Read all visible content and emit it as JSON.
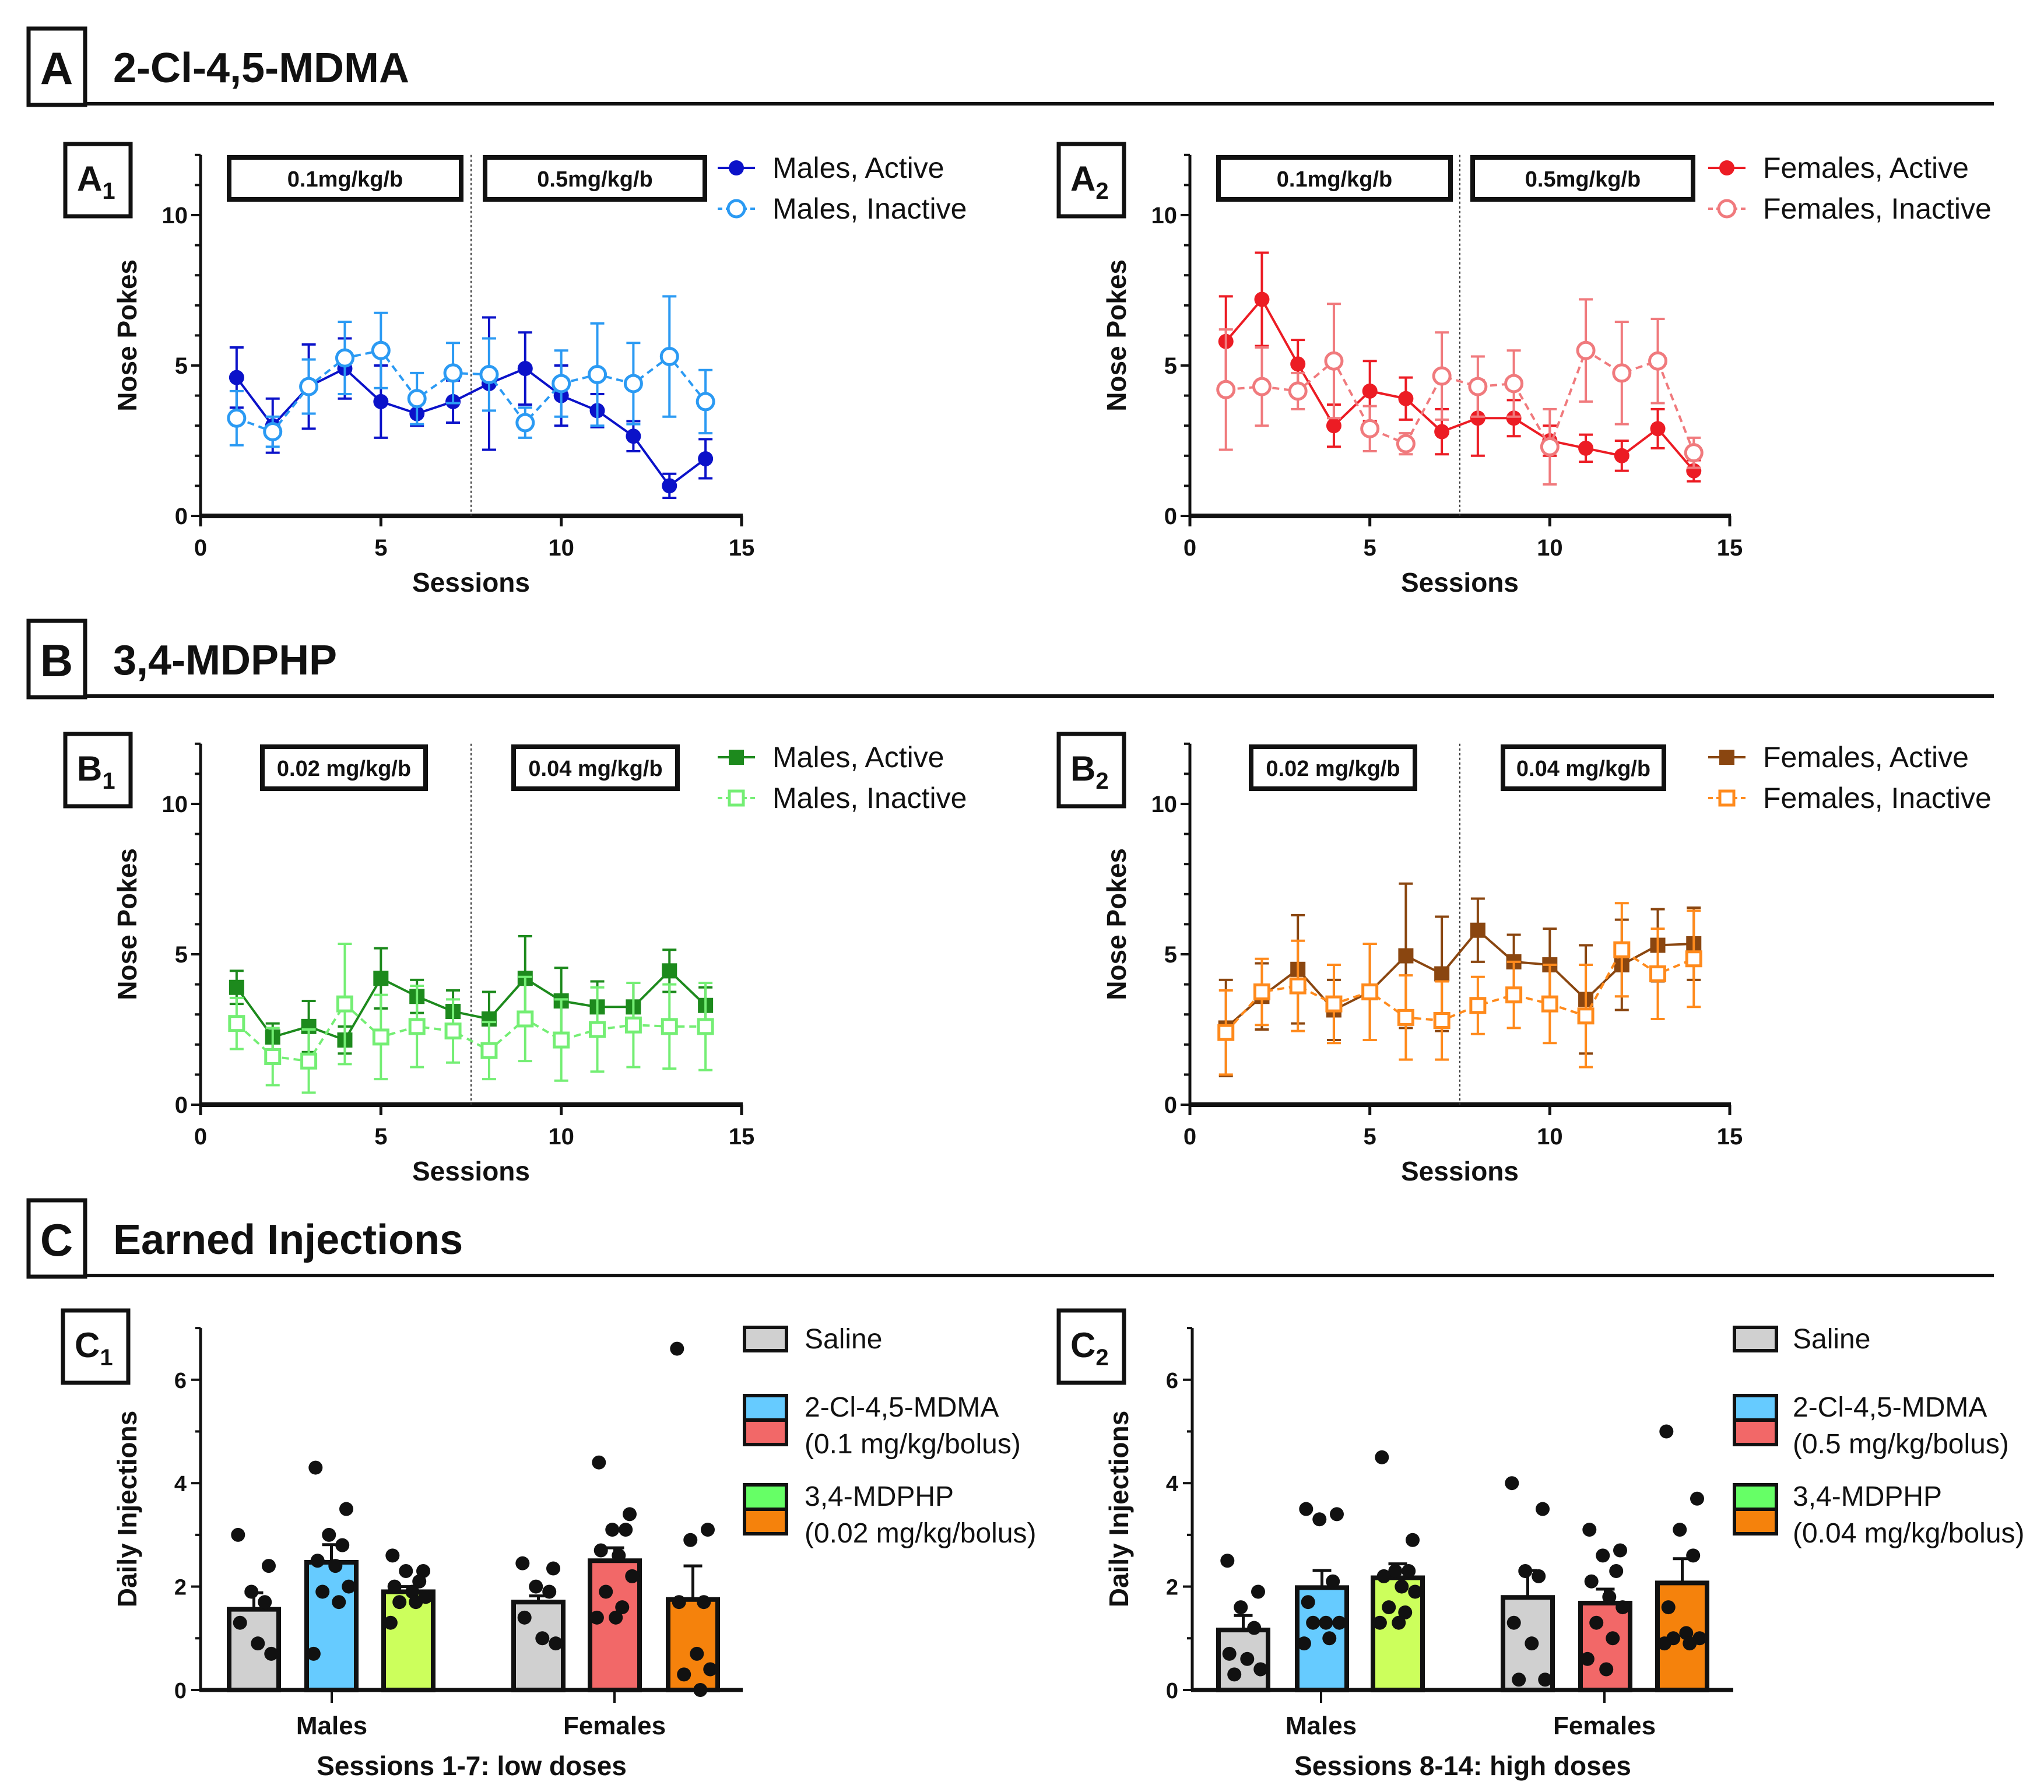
{
  "sections": [
    {
      "letter": "A",
      "title": "2-Cl-4,5-MDMA"
    },
    {
      "letter": "B",
      "title": "3,4-MDPHP"
    },
    {
      "letter": "C",
      "title": "Earned Injections"
    }
  ],
  "chart_data": [
    {
      "id": "A1",
      "type": "line",
      "panel_letter": "A",
      "panel_sub": "1",
      "xlabel": "Sessions",
      "ylabel": "Nose Pokes",
      "xlim": [
        0,
        15
      ],
      "ylim": [
        0,
        12
      ],
      "xticks": [
        "0",
        "5",
        "10",
        "15"
      ],
      "yticks": [
        "0",
        "5",
        "10"
      ],
      "dose_labels": [
        "0.1mg/kg/b",
        "0.5mg/kg/b"
      ],
      "divider_x": 7.5,
      "x": [
        1,
        2,
        3,
        4,
        5,
        6,
        7,
        8,
        9,
        10,
        11,
        12,
        13,
        14
      ],
      "series": [
        {
          "name": "Males, Active",
          "color": "#0b12c9",
          "marker": "circle",
          "filled": true,
          "dashed": false,
          "values": [
            4.6,
            3.0,
            4.3,
            4.9,
            3.8,
            3.4,
            3.8,
            4.4,
            4.9,
            4.0,
            3.5,
            2.65,
            1.0,
            1.9
          ],
          "errors": [
            1.0,
            0.9,
            1.4,
            1.0,
            1.2,
            0.4,
            0.7,
            2.2,
            1.2,
            1.0,
            0.55,
            0.5,
            0.4,
            0.65
          ]
        },
        {
          "name": "Males, Inactive",
          "color": "#2b9af3",
          "marker": "circle",
          "filled": false,
          "dashed": true,
          "values": [
            3.25,
            2.8,
            4.3,
            5.25,
            5.5,
            3.9,
            4.75,
            4.7,
            3.1,
            4.4,
            4.7,
            4.4,
            5.3,
            3.8
          ],
          "errors": [
            0.9,
            0.5,
            0.9,
            1.2,
            1.25,
            0.85,
            1.0,
            1.2,
            0.5,
            1.1,
            1.7,
            1.35,
            2.0,
            1.05
          ]
        }
      ]
    },
    {
      "id": "A2",
      "type": "line",
      "panel_letter": "A",
      "panel_sub": "2",
      "xlabel": "Sessions",
      "ylabel": "Nose Pokes",
      "xlim": [
        0,
        15
      ],
      "ylim": [
        0,
        12
      ],
      "xticks": [
        "0",
        "5",
        "10",
        "15"
      ],
      "yticks": [
        "0",
        "5",
        "10"
      ],
      "dose_labels": [
        "0.1mg/kg/b",
        "0.5mg/kg/b"
      ],
      "divider_x": 7.5,
      "x": [
        1,
        2,
        3,
        4,
        5,
        6,
        7,
        8,
        9,
        10,
        11,
        12,
        13,
        14
      ],
      "series": [
        {
          "name": "Females, Active",
          "color": "#ec1c24",
          "marker": "circle",
          "filled": true,
          "dashed": false,
          "values": [
            5.8,
            7.2,
            5.05,
            3.0,
            4.15,
            3.9,
            2.8,
            3.25,
            3.25,
            2.5,
            2.25,
            2.0,
            2.9,
            1.5
          ],
          "errors": [
            1.5,
            1.55,
            0.8,
            0.7,
            1.0,
            0.7,
            0.75,
            1.25,
            0.6,
            0.5,
            0.45,
            0.5,
            0.65,
            0.35
          ]
        },
        {
          "name": "Females, Inactive",
          "color": "#f07a7d",
          "marker": "circle",
          "filled": false,
          "dashed": true,
          "values": [
            4.2,
            4.3,
            4.15,
            5.15,
            2.9,
            2.4,
            4.65,
            4.3,
            4.4,
            2.3,
            5.5,
            4.75,
            5.15,
            2.1
          ],
          "errors": [
            2.0,
            1.3,
            0.6,
            1.9,
            0.75,
            0.35,
            1.45,
            1.0,
            1.1,
            1.25,
            1.7,
            1.7,
            1.4,
            0.5
          ]
        }
      ]
    },
    {
      "id": "B1",
      "type": "line",
      "panel_letter": "B",
      "panel_sub": "1",
      "xlabel": "Sessions",
      "ylabel": "Nose Pokes",
      "xlim": [
        0,
        15
      ],
      "ylim": [
        0,
        12
      ],
      "xticks": [
        "0",
        "5",
        "10",
        "15"
      ],
      "yticks": [
        "0",
        "5",
        "10"
      ],
      "dose_labels": [
        "0.02 mg/kg/b",
        "0.04 mg/kg/b"
      ],
      "divider_x": 7.5,
      "x": [
        1,
        2,
        3,
        4,
        5,
        6,
        7,
        8,
        9,
        10,
        11,
        12,
        13,
        14
      ],
      "series": [
        {
          "name": "Males, Active",
          "color": "#1d8a1d",
          "marker": "square",
          "filled": true,
          "dashed": false,
          "values": [
            3.9,
            2.25,
            2.6,
            2.15,
            4.2,
            3.6,
            3.1,
            2.85,
            4.2,
            3.45,
            3.25,
            3.25,
            4.45,
            3.3
          ],
          "errors": [
            0.55,
            0.45,
            0.85,
            0.45,
            1.0,
            0.55,
            0.7,
            0.9,
            1.4,
            1.1,
            0.85,
            0.8,
            0.7,
            0.6
          ]
        },
        {
          "name": "Males, Inactive",
          "color": "#74ee74",
          "marker": "square",
          "filled": false,
          "dashed": true,
          "values": [
            2.7,
            1.6,
            1.45,
            3.35,
            2.25,
            2.6,
            2.45,
            1.8,
            2.85,
            2.15,
            2.5,
            2.65,
            2.6,
            2.6
          ],
          "errors": [
            0.85,
            0.95,
            1.05,
            2.0,
            1.4,
            1.35,
            1.05,
            0.95,
            1.4,
            1.35,
            1.4,
            1.4,
            1.4,
            1.45
          ]
        }
      ]
    },
    {
      "id": "B2",
      "type": "line",
      "panel_letter": "B",
      "panel_sub": "2",
      "xlabel": "Sessions",
      "ylabel": "Nose Pokes",
      "xlim": [
        0,
        15
      ],
      "ylim": [
        0,
        12
      ],
      "xticks": [
        "0",
        "5",
        "10",
        "15"
      ],
      "yticks": [
        "0",
        "5",
        "10"
      ],
      "dose_labels": [
        "0.02 mg/kg/b",
        "0.04 mg/kg/b"
      ],
      "divider_x": 7.5,
      "x": [
        1,
        2,
        3,
        4,
        5,
        6,
        7,
        8,
        9,
        10,
        11,
        12,
        13,
        14
      ],
      "series": [
        {
          "name": "Females, Active",
          "color": "#8a4610",
          "marker": "square",
          "filled": true,
          "dashed": false,
          "values": [
            2.55,
            3.6,
            4.5,
            3.15,
            3.75,
            4.95,
            4.35,
            5.8,
            4.75,
            4.65,
            3.5,
            4.65,
            5.3,
            5.35
          ],
          "errors": [
            1.6,
            1.1,
            1.8,
            1.0,
            1.6,
            2.4,
            1.9,
            1.05,
            0.9,
            1.2,
            1.8,
            1.5,
            1.2,
            1.2
          ]
        },
        {
          "name": "Females, Inactive",
          "color": "#ff8a1c",
          "marker": "square",
          "filled": false,
          "dashed": true,
          "values": [
            2.4,
            3.75,
            3.95,
            3.35,
            3.75,
            2.9,
            2.8,
            3.3,
            3.65,
            3.35,
            2.95,
            5.15,
            4.35,
            4.85
          ],
          "errors": [
            1.4,
            1.1,
            1.5,
            1.3,
            1.6,
            1.4,
            1.3,
            0.95,
            1.1,
            1.3,
            1.7,
            1.55,
            1.5,
            1.6
          ]
        }
      ]
    },
    {
      "id": "C1",
      "type": "bar",
      "panel_letter": "C",
      "panel_sub": "1",
      "xlabel": "Sessions 1-7: low doses",
      "ylabel": "Daily Injections",
      "categories": [
        "Males",
        "Females"
      ],
      "ylim": [
        0,
        7
      ],
      "yticks": [
        "0",
        "2",
        "4",
        "6"
      ],
      "bars": [
        {
          "group": "Males",
          "treatment": "Saline",
          "color": "#d0d0d0",
          "mean": 1.56,
          "sem": 0.32,
          "points": [
            3.0,
            2.4,
            1.9,
            1.7,
            1.3,
            0.9,
            0.7
          ]
        },
        {
          "group": "Males",
          "treatment": "2-Cl-4,5-MDMA",
          "color": "#66cbff",
          "mean": 2.47,
          "sem": 0.34,
          "points": [
            4.3,
            3.5,
            3.0,
            2.8,
            2.5,
            2.4,
            2.0,
            1.9,
            1.7,
            0.7
          ]
        },
        {
          "group": "Males",
          "treatment": "3,4-MDPHP",
          "color": "#ccff5c",
          "mean": 1.9,
          "sem": 0.1,
          "points": [
            2.6,
            2.3,
            2.3,
            2.1,
            2.0,
            1.9,
            1.8,
            1.7,
            1.7,
            1.3
          ]
        },
        {
          "group": "Females",
          "treatment": "Saline",
          "color": "#d0d0d0",
          "mean": 1.7,
          "sem": 0.12,
          "points": [
            2.45,
            2.35,
            2.0,
            1.9,
            1.4,
            1.0,
            0.9
          ]
        },
        {
          "group": "Females",
          "treatment": "2-Cl-4,5-MDMA",
          "color": "#f26868",
          "mean": 2.5,
          "sem": 0.25,
          "points": [
            4.4,
            3.4,
            3.1,
            3.1,
            2.7,
            2.6,
            2.2,
            1.9,
            1.6,
            1.4,
            1.4
          ]
        },
        {
          "group": "Females",
          "treatment": "3,4-MDPHP",
          "color": "#f5820c",
          "mean": 1.75,
          "sem": 0.65,
          "points": [
            6.6,
            3.1,
            2.9,
            1.7,
            1.7,
            0.7,
            0.4,
            0.3,
            0.0
          ]
        }
      ],
      "legend": [
        {
          "label": "Saline",
          "sublabel": "",
          "colors": [
            "#d0d0d0"
          ]
        },
        {
          "label": "2-Cl-4,5-MDMA",
          "sublabel": "(0.1 mg/kg/bolus)",
          "colors": [
            "#66cbff",
            "#f26868"
          ]
        },
        {
          "label": "3,4-MDPHP",
          "sublabel": "(0.02 mg/kg/bolus)",
          "colors": [
            "#66ff66",
            "#f5820c"
          ]
        }
      ]
    },
    {
      "id": "C2",
      "type": "bar",
      "panel_letter": "C",
      "panel_sub": "2",
      "xlabel": "Sessions 8-14: high doses",
      "ylabel": "Daily Injections",
      "categories": [
        "Males",
        "Females"
      ],
      "ylim": [
        0,
        7
      ],
      "yticks": [
        "0",
        "2",
        "4",
        "6"
      ],
      "bars": [
        {
          "group": "Males",
          "treatment": "Saline",
          "color": "#d0d0d0",
          "mean": 1.16,
          "sem": 0.28,
          "points": [
            2.5,
            1.9,
            1.6,
            1.2,
            0.7,
            0.6,
            0.4,
            0.3
          ]
        },
        {
          "group": "Males",
          "treatment": "2-Cl-4,5-MDMA",
          "color": "#66cbff",
          "mean": 1.98,
          "sem": 0.33,
          "points": [
            3.5,
            3.4,
            3.3,
            2.1,
            1.7,
            1.3,
            1.3,
            1.3,
            1.0,
            0.9
          ]
        },
        {
          "group": "Males",
          "treatment": "3,4-MDPHP",
          "color": "#ccff5c",
          "mean": 2.17,
          "sem": 0.27,
          "points": [
            4.5,
            2.9,
            2.3,
            2.3,
            2.2,
            2.0,
            1.9,
            1.6,
            1.5,
            1.3,
            1.3
          ]
        },
        {
          "group": "Females",
          "treatment": "Saline",
          "color": "#d0d0d0",
          "mean": 1.79,
          "sem": 0.52,
          "points": [
            4.0,
            3.5,
            2.3,
            2.2,
            1.3,
            0.9,
            0.2,
            0.2
          ]
        },
        {
          "group": "Females",
          "treatment": "2-Cl-4,5-MDMA",
          "color": "#f26868",
          "mean": 1.68,
          "sem": 0.27,
          "points": [
            3.1,
            2.7,
            2.6,
            2.3,
            2.1,
            1.8,
            1.6,
            1.3,
            1.0,
            0.6,
            0.4
          ]
        },
        {
          "group": "Females",
          "treatment": "3,4-MDPHP",
          "color": "#f5820c",
          "mean": 2.07,
          "sem": 0.47,
          "points": [
            5.0,
            3.7,
            3.1,
            2.6,
            1.6,
            1.1,
            1.0,
            1.0,
            0.9,
            0.9
          ]
        }
      ],
      "legend": [
        {
          "label": "Saline",
          "sublabel": "",
          "colors": [
            "#d0d0d0"
          ]
        },
        {
          "label": "2-Cl-4,5-MDMA",
          "sublabel": "(0.5 mg/kg/bolus)",
          "colors": [
            "#66cbff",
            "#f26868"
          ]
        },
        {
          "label": "3,4-MDPHP",
          "sublabel": "(0.04 mg/kg/bolus)",
          "colors": [
            "#66ff66",
            "#f5820c"
          ]
        }
      ]
    }
  ]
}
